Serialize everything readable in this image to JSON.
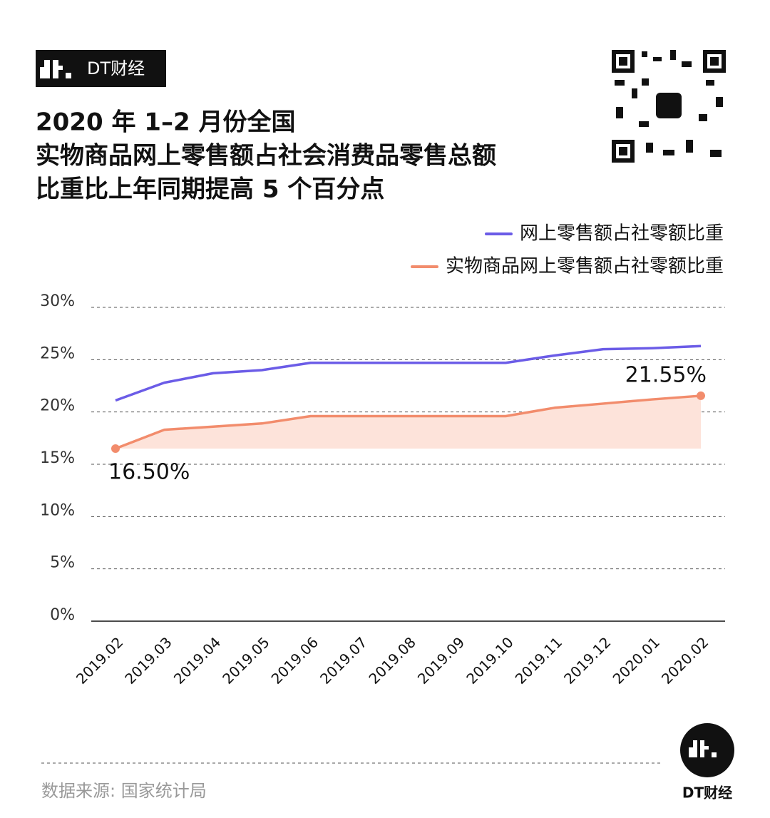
{
  "brand": "DT财经",
  "source": "数据来源: 国家统计局",
  "footer_brand": "DT财经",
  "chart_data": {
    "type": "line",
    "title": [
      "2020 年 1–2 月份全国",
      "实物商品网上零售额占社会消费品零售总额",
      "比重比上年同期提高 5 个百分点"
    ],
    "categories": [
      "2019.02",
      "2019.03",
      "2019.04",
      "2019.05",
      "2019.06",
      "2019.07",
      "2019.08",
      "2019.09",
      "2019.10",
      "2019.11",
      "2019.12",
      "2020.01",
      "2020.02"
    ],
    "series": [
      {
        "name": "网上零售额占社零额比重",
        "color": "#6b5ce7",
        "values": [
          21.1,
          22.8,
          23.7,
          24.0,
          24.7,
          24.7,
          24.7,
          24.7,
          24.7,
          25.4,
          26.0,
          26.1,
          26.3
        ]
      },
      {
        "name": "实物商品网上零售额占社零额比重",
        "color": "#f28c6c",
        "area_color": "#fde3da",
        "values": [
          16.5,
          18.3,
          18.6,
          18.9,
          19.6,
          19.6,
          19.6,
          19.6,
          19.6,
          20.4,
          20.8,
          21.2,
          21.55
        ],
        "value_labels": [
          "16.50%",
          null,
          null,
          null,
          null,
          null,
          null,
          null,
          null,
          null,
          null,
          null,
          "21.55%"
        ]
      }
    ],
    "ylim": [
      0,
      30
    ],
    "yticks": [
      {
        "value": 0,
        "label": "0%"
      },
      {
        "value": 5,
        "label": "5%"
      },
      {
        "value": 10,
        "label": "10%"
      },
      {
        "value": 15,
        "label": "15%"
      },
      {
        "value": 20,
        "label": "20%"
      },
      {
        "value": 25,
        "label": "25%"
      },
      {
        "value": 30,
        "label": "30%"
      }
    ],
    "grid": true,
    "legend": "top-right"
  }
}
